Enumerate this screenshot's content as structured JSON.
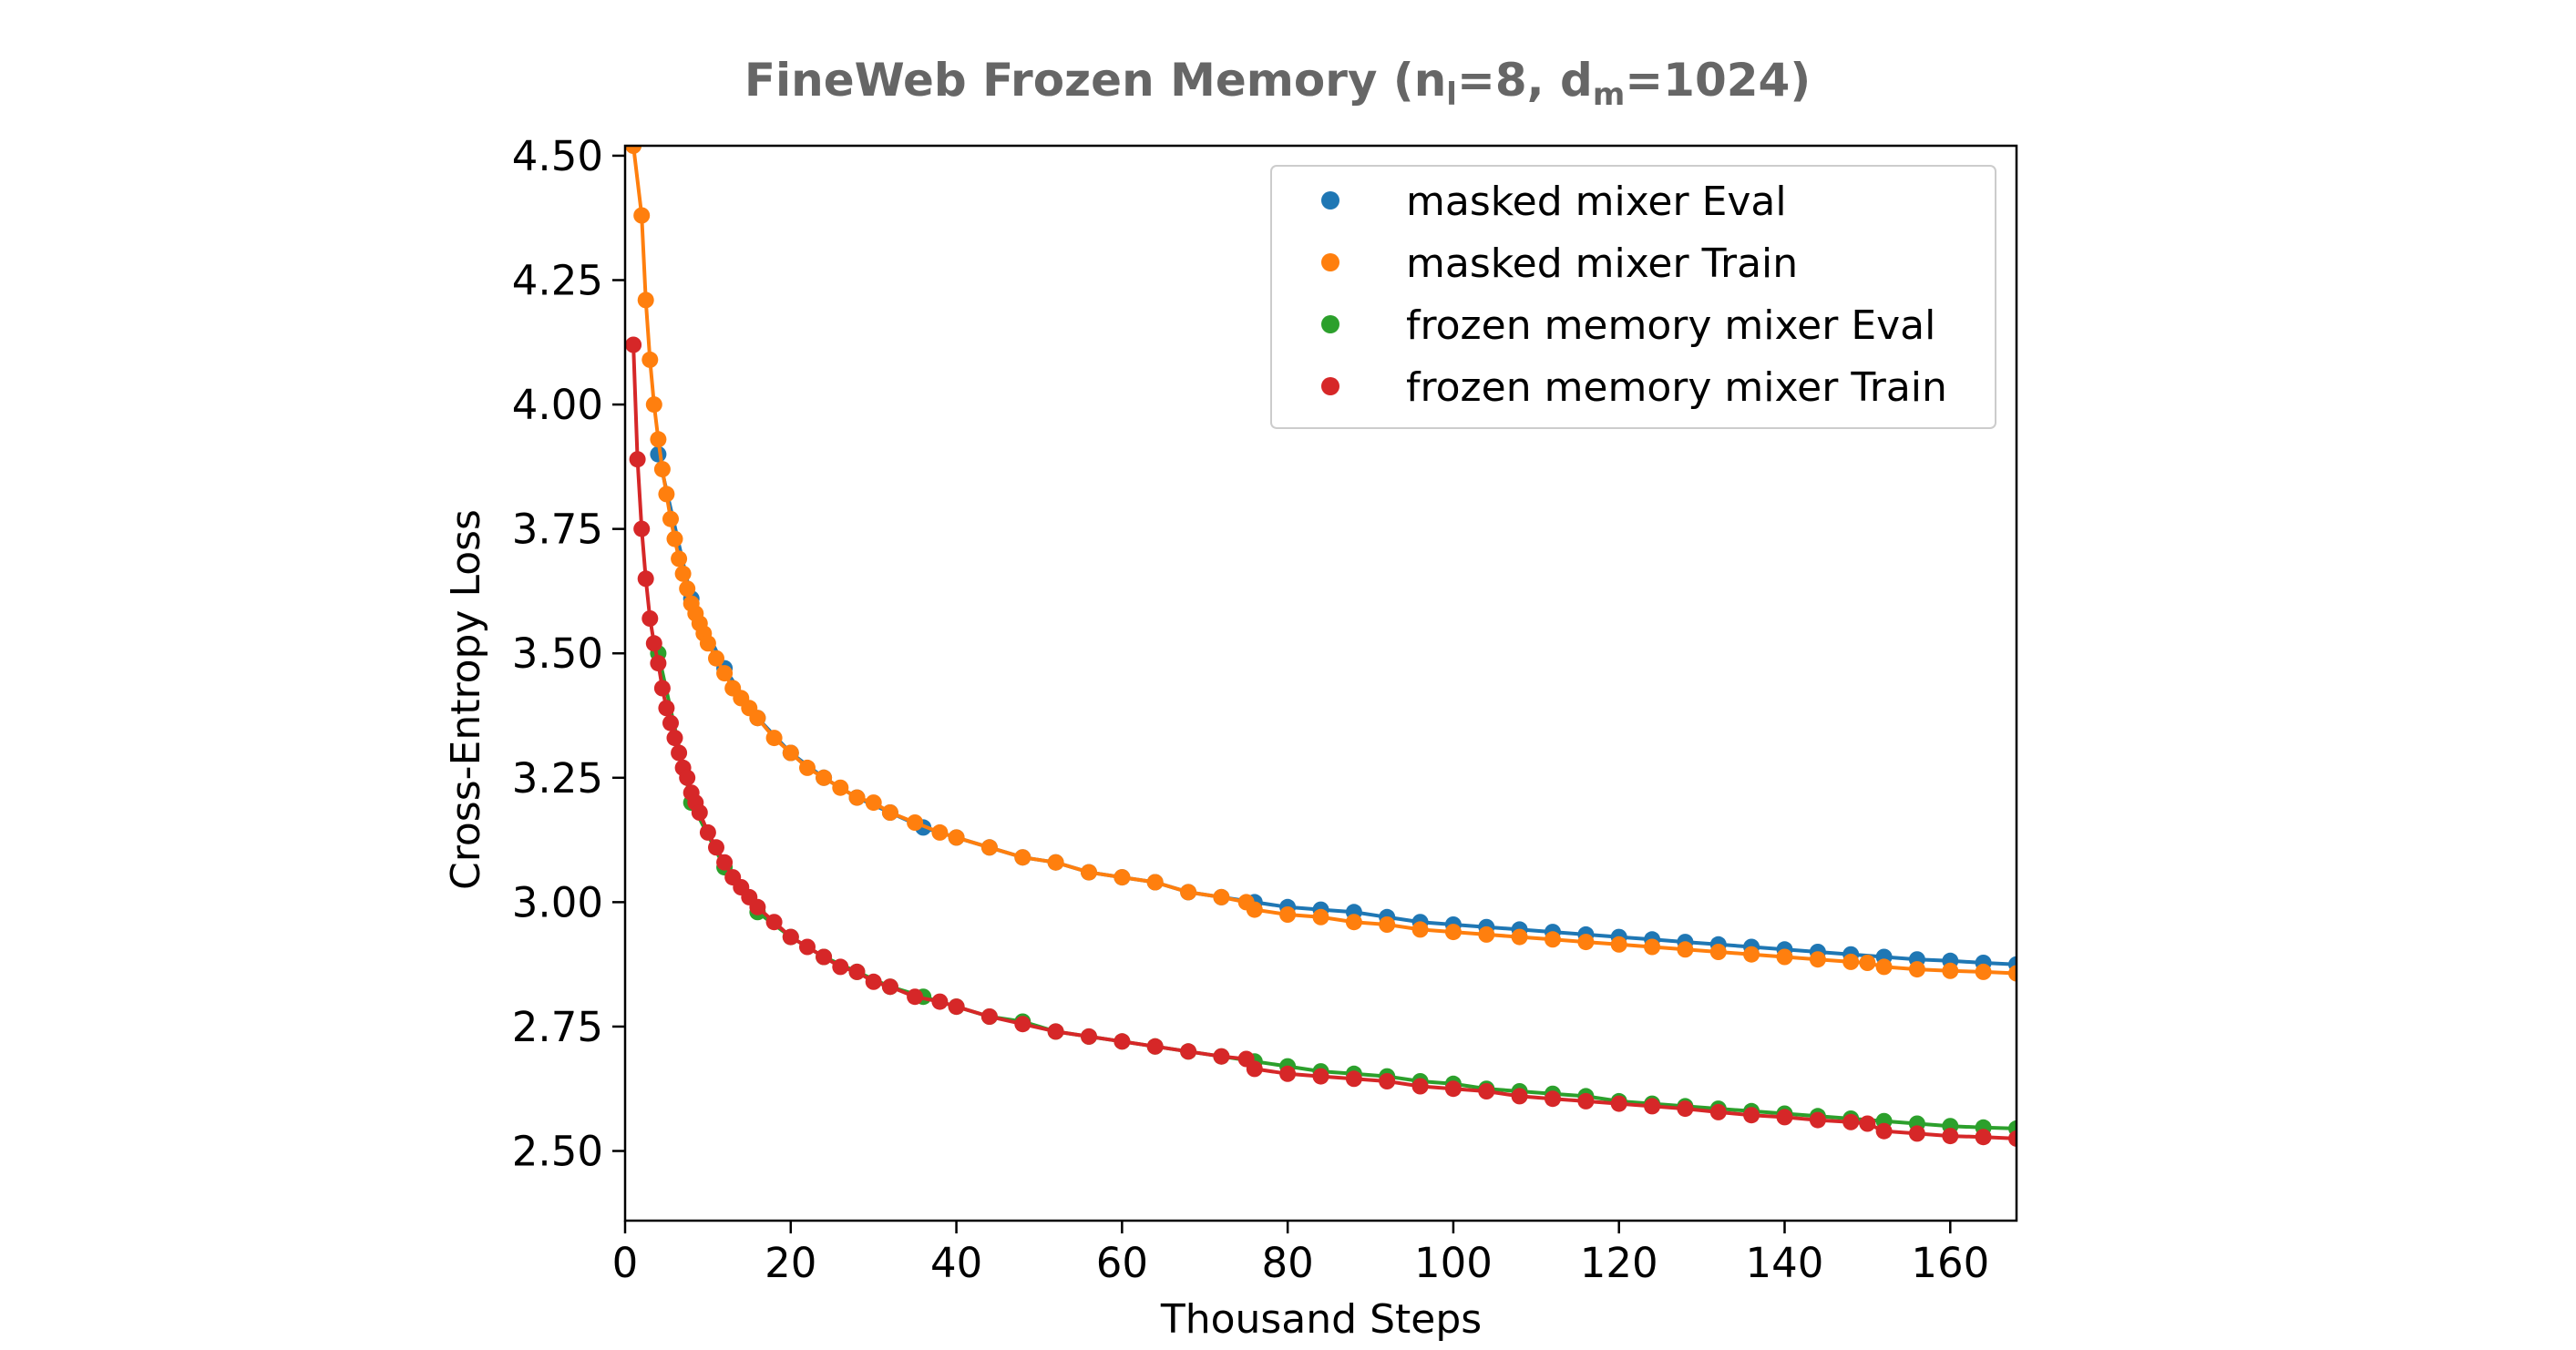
{
  "chart_data": {
    "type": "scatter",
    "title": "FineWeb Frozen Memory (n",
    "title_parts": {
      "prefix": "FineWeb Frozen Memory (n",
      "sub1": "l",
      "mid": "=8, d",
      "sub2": "m",
      "suffix": "=1024)"
    },
    "xlabel": "Thousand Steps",
    "ylabel": "Cross-Entropy Loss",
    "xlim": [
      0,
      168
    ],
    "ylim": [
      2.36,
      4.52
    ],
    "xticks": [
      "0",
      "20",
      "40",
      "60",
      "80",
      "100",
      "120",
      "140",
      "160"
    ],
    "yticks": [
      "2.50",
      "2.75",
      "3.00",
      "3.25",
      "3.50",
      "3.75",
      "4.00",
      "4.25",
      "4.50"
    ],
    "legend_position": "upper right",
    "grid": false,
    "series": [
      {
        "name": "masked mixer Eval",
        "color": "#1f77b4",
        "kind": "eval",
        "x": [
          4,
          8,
          12,
          16,
          20,
          24,
          28,
          32,
          36,
          40,
          44,
          48,
          52,
          56,
          60,
          64,
          68,
          72,
          76,
          80,
          84,
          88,
          92,
          96,
          100,
          104,
          108,
          112,
          116,
          120,
          124,
          128,
          132,
          136,
          140,
          144,
          148,
          152,
          156,
          160,
          164,
          168
        ],
        "y": [
          3.9,
          3.61,
          3.47,
          3.37,
          3.3,
          3.25,
          3.21,
          3.18,
          3.15,
          3.13,
          3.11,
          3.09,
          3.08,
          3.06,
          3.05,
          3.04,
          3.02,
          3.01,
          3.0,
          2.99,
          2.985,
          2.98,
          2.97,
          2.96,
          2.955,
          2.95,
          2.945,
          2.94,
          2.935,
          2.93,
          2.925,
          2.92,
          2.915,
          2.91,
          2.905,
          2.9,
          2.895,
          2.89,
          2.885,
          2.882,
          2.878,
          2.875
        ]
      },
      {
        "name": "masked mixer Train",
        "color": "#ff7f0e",
        "kind": "train",
        "x": [
          1,
          2,
          2.5,
          3,
          3.5,
          4,
          4.5,
          5,
          5.5,
          6,
          6.5,
          7,
          7.5,
          8,
          8.5,
          9,
          9.5,
          10,
          11,
          12,
          13,
          14,
          15,
          16,
          18,
          20,
          22,
          24,
          26,
          28,
          30,
          32,
          35,
          38,
          40,
          44,
          48,
          52,
          56,
          60,
          64,
          68,
          72,
          75,
          76,
          80,
          84,
          88,
          92,
          96,
          100,
          104,
          108,
          112,
          116,
          120,
          124,
          128,
          132,
          136,
          140,
          144,
          148,
          150,
          152,
          156,
          160,
          164,
          168
        ],
        "y": [
          4.52,
          4.38,
          4.21,
          4.09,
          4.0,
          3.93,
          3.87,
          3.82,
          3.77,
          3.73,
          3.69,
          3.66,
          3.63,
          3.6,
          3.58,
          3.56,
          3.54,
          3.52,
          3.49,
          3.46,
          3.43,
          3.41,
          3.39,
          3.37,
          3.33,
          3.3,
          3.27,
          3.25,
          3.23,
          3.21,
          3.2,
          3.18,
          3.16,
          3.14,
          3.13,
          3.11,
          3.09,
          3.08,
          3.06,
          3.05,
          3.04,
          3.02,
          3.01,
          3.0,
          2.985,
          2.975,
          2.97,
          2.96,
          2.955,
          2.945,
          2.94,
          2.935,
          2.93,
          2.925,
          2.92,
          2.915,
          2.91,
          2.905,
          2.9,
          2.895,
          2.89,
          2.885,
          2.88,
          2.878,
          2.87,
          2.865,
          2.862,
          2.86,
          2.857
        ]
      },
      {
        "name": "frozen memory mixer Eval",
        "color": "#2ca02c",
        "kind": "eval",
        "x": [
          4,
          8,
          12,
          16,
          20,
          24,
          28,
          32,
          36,
          40,
          44,
          48,
          52,
          56,
          60,
          64,
          68,
          72,
          76,
          80,
          84,
          88,
          92,
          96,
          100,
          104,
          108,
          112,
          116,
          120,
          124,
          128,
          132,
          136,
          140,
          144,
          148,
          152,
          156,
          160,
          164,
          168
        ],
        "y": [
          3.5,
          3.2,
          3.07,
          2.98,
          2.93,
          2.89,
          2.86,
          2.83,
          2.81,
          2.79,
          2.77,
          2.76,
          2.74,
          2.73,
          2.72,
          2.71,
          2.7,
          2.69,
          2.68,
          2.67,
          2.66,
          2.655,
          2.65,
          2.64,
          2.635,
          2.625,
          2.62,
          2.615,
          2.61,
          2.6,
          2.595,
          2.59,
          2.585,
          2.58,
          2.575,
          2.57,
          2.565,
          2.56,
          2.555,
          2.55,
          2.547,
          2.545
        ]
      },
      {
        "name": "frozen memory mixer Train",
        "color": "#d62728",
        "kind": "train",
        "x": [
          1,
          1.5,
          2,
          2.5,
          3,
          3.5,
          4,
          4.5,
          5,
          5.5,
          6,
          6.5,
          7,
          7.5,
          8,
          8.5,
          9,
          10,
          11,
          12,
          13,
          14,
          15,
          16,
          18,
          20,
          22,
          24,
          26,
          28,
          30,
          32,
          35,
          38,
          40,
          44,
          48,
          52,
          56,
          60,
          64,
          68,
          72,
          75,
          76,
          80,
          84,
          88,
          92,
          96,
          100,
          104,
          108,
          112,
          116,
          120,
          124,
          128,
          132,
          136,
          140,
          144,
          148,
          150,
          152,
          156,
          160,
          164,
          168
        ],
        "y": [
          4.12,
          3.89,
          3.75,
          3.65,
          3.57,
          3.52,
          3.48,
          3.43,
          3.39,
          3.36,
          3.33,
          3.3,
          3.27,
          3.25,
          3.22,
          3.2,
          3.18,
          3.14,
          3.11,
          3.08,
          3.05,
          3.03,
          3.01,
          2.99,
          2.96,
          2.93,
          2.91,
          2.89,
          2.87,
          2.86,
          2.84,
          2.83,
          2.81,
          2.8,
          2.79,
          2.77,
          2.755,
          2.74,
          2.73,
          2.72,
          2.71,
          2.7,
          2.69,
          2.685,
          2.665,
          2.655,
          2.65,
          2.645,
          2.64,
          2.63,
          2.625,
          2.62,
          2.61,
          2.605,
          2.6,
          2.595,
          2.59,
          2.585,
          2.578,
          2.572,
          2.568,
          2.562,
          2.558,
          2.555,
          2.54,
          2.535,
          2.53,
          2.528,
          2.525
        ]
      }
    ]
  }
}
